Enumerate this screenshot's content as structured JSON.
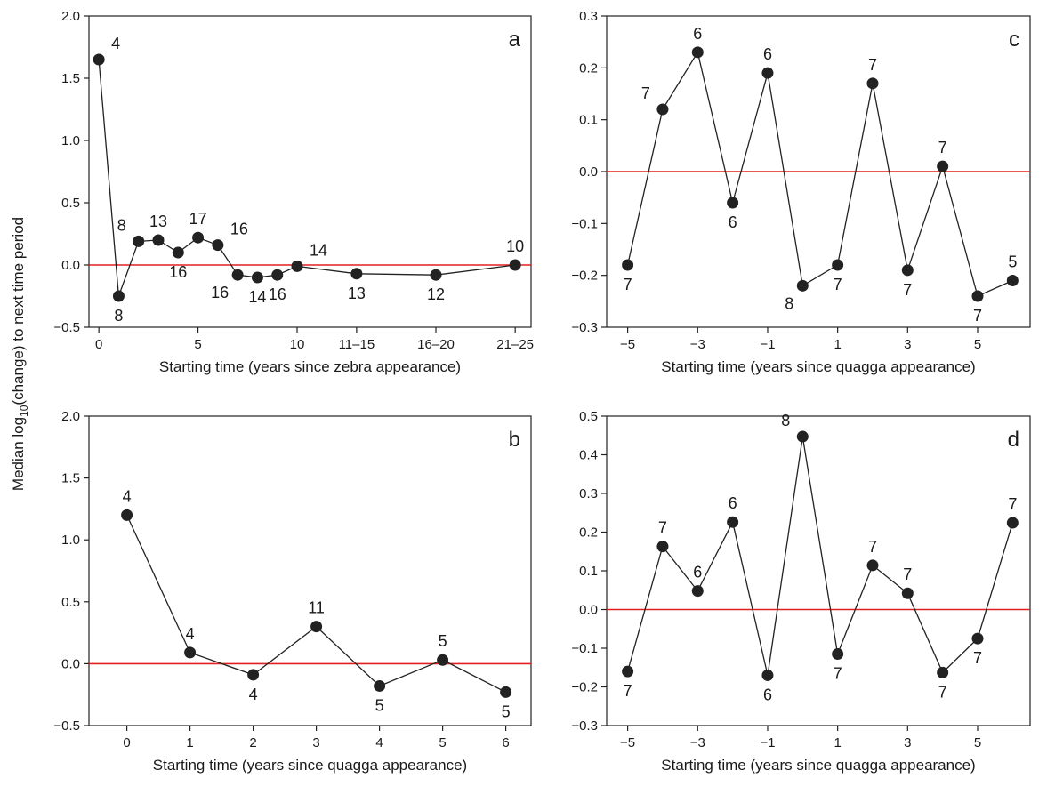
{
  "ylabel_parts": {
    "prefix": "Median log",
    "subscript": "10",
    "suffix": "(change) to next time period"
  },
  "chart_data": [
    {
      "type": "line",
      "panel": "a",
      "xlabel": "Starting time (years since zebra appearance)",
      "ylabel": "",
      "ylim": [
        -0.5,
        2.0
      ],
      "y_ticks": [
        -0.5,
        0.0,
        0.5,
        1.0,
        1.5,
        2.0
      ],
      "y_tick_labels": [
        "−0.5",
        "0.0",
        "0.5",
        "1.0",
        "1.5",
        "2.0"
      ],
      "x_ticks": [
        0,
        5,
        10,
        13,
        17,
        21
      ],
      "x_tick_labels": [
        "0",
        "5",
        "10",
        "11–15",
        "16–20",
        "21–25"
      ],
      "xlim": [
        -0.5,
        21.8
      ],
      "reference_line": 0.0,
      "reference_color": "#e02020",
      "points": [
        {
          "x": 0,
          "y": 1.65,
          "label": "4",
          "label_pos": "upper-right"
        },
        {
          "x": 1,
          "y": -0.25,
          "label": "8",
          "label_pos": "below"
        },
        {
          "x": 2,
          "y": 0.19,
          "label": "8",
          "label_pos": "upper-left"
        },
        {
          "x": 3,
          "y": 0.2,
          "label": "13",
          "label_pos": "above"
        },
        {
          "x": 4,
          "y": 0.1,
          "label": "16",
          "label_pos": "below"
        },
        {
          "x": 5,
          "y": 0.22,
          "label": "17",
          "label_pos": "above"
        },
        {
          "x": 6,
          "y": 0.16,
          "label": "16",
          "label_pos": "upper-right"
        },
        {
          "x": 7,
          "y": -0.08,
          "label": "16",
          "label_pos": "lower-left"
        },
        {
          "x": 8,
          "y": -0.1,
          "label": "14",
          "label_pos": "below"
        },
        {
          "x": 9,
          "y": -0.08,
          "label": "16",
          "label_pos": "below"
        },
        {
          "x": 10,
          "y": -0.01,
          "label": "14",
          "label_pos": "upper-right"
        },
        {
          "x": 13,
          "y": -0.07,
          "label": "13",
          "label_pos": "below"
        },
        {
          "x": 17,
          "y": -0.08,
          "label": "12",
          "label_pos": "below"
        },
        {
          "x": 21,
          "y": 0.0,
          "label": "10",
          "label_pos": "above"
        }
      ]
    },
    {
      "type": "line",
      "panel": "b",
      "xlabel": "Starting time (years since quagga appearance)",
      "ylabel": "",
      "ylim": [
        -0.5,
        2.0
      ],
      "y_ticks": [
        -0.5,
        0.0,
        0.5,
        1.0,
        1.5,
        2.0
      ],
      "y_tick_labels": [
        "−0.5",
        "0.0",
        "0.5",
        "1.0",
        "1.5",
        "2.0"
      ],
      "x_ticks": [
        0,
        1,
        2,
        3,
        4,
        5,
        6
      ],
      "x_tick_labels": [
        "0",
        "1",
        "2",
        "3",
        "4",
        "5",
        "6"
      ],
      "xlim": [
        -0.6,
        6.4
      ],
      "reference_line": 0.0,
      "reference_color": "#e02020",
      "points": [
        {
          "x": 0,
          "y": 1.2,
          "label": "4",
          "label_pos": "above"
        },
        {
          "x": 1,
          "y": 0.09,
          "label": "4",
          "label_pos": "above"
        },
        {
          "x": 2,
          "y": -0.09,
          "label": "4",
          "label_pos": "below"
        },
        {
          "x": 3,
          "y": 0.3,
          "label": "11",
          "label_pos": "above"
        },
        {
          "x": 4,
          "y": -0.18,
          "label": "5",
          "label_pos": "below"
        },
        {
          "x": 5,
          "y": 0.03,
          "label": "5",
          "label_pos": "above"
        },
        {
          "x": 6,
          "y": -0.23,
          "label": "5",
          "label_pos": "below"
        }
      ]
    },
    {
      "type": "line",
      "panel": "c",
      "xlabel": "Starting time (years since quagga appearance)",
      "ylabel": "",
      "ylim": [
        -0.3,
        0.3
      ],
      "y_ticks": [
        -0.3,
        -0.2,
        -0.1,
        0.0,
        0.1,
        0.2,
        0.3
      ],
      "y_tick_labels": [
        "−0.3",
        "−0.2",
        "−0.1",
        "0.0",
        "0.1",
        "0.2",
        "0.3"
      ],
      "x_ticks": [
        -5,
        -3,
        -1,
        1,
        3,
        5
      ],
      "x_tick_labels": [
        "−5",
        "−3",
        "−1",
        "1",
        "3",
        "5"
      ],
      "xlim": [
        -5.6,
        6.5
      ],
      "reference_line": 0.0,
      "reference_color": "#e02020",
      "points": [
        {
          "x": -5,
          "y": -0.18,
          "label": "7",
          "label_pos": "below"
        },
        {
          "x": -4,
          "y": 0.12,
          "label": "7",
          "label_pos": "upper-left"
        },
        {
          "x": -3,
          "y": 0.23,
          "label": "6",
          "label_pos": "above"
        },
        {
          "x": -2,
          "y": -0.06,
          "label": "6",
          "label_pos": "below"
        },
        {
          "x": -1,
          "y": 0.19,
          "label": "6",
          "label_pos": "above"
        },
        {
          "x": 0,
          "y": -0.22,
          "label": "8",
          "label_pos": "lower-left"
        },
        {
          "x": 1,
          "y": -0.18,
          "label": "7",
          "label_pos": "below"
        },
        {
          "x": 2,
          "y": 0.17,
          "label": "7",
          "label_pos": "above"
        },
        {
          "x": 3,
          "y": -0.19,
          "label": "7",
          "label_pos": "below"
        },
        {
          "x": 4,
          "y": 0.01,
          "label": "7",
          "label_pos": "above"
        },
        {
          "x": 5,
          "y": -0.24,
          "label": "7",
          "label_pos": "below"
        },
        {
          "x": 6,
          "y": -0.21,
          "label": "5",
          "label_pos": "above"
        }
      ]
    },
    {
      "type": "line",
      "panel": "d",
      "xlabel": "Starting time (years since quagga appearance)",
      "ylabel": "",
      "ylim": [
        -0.3,
        0.5
      ],
      "y_ticks": [
        -0.3,
        -0.2,
        -0.1,
        0.0,
        0.1,
        0.2,
        0.3,
        0.4,
        0.5
      ],
      "y_tick_labels": [
        "−0.3",
        "−0.2",
        "−0.1",
        "0.0",
        "0.1",
        "0.2",
        "0.3",
        "0.4",
        "0.5"
      ],
      "x_ticks": [
        -5,
        -3,
        -1,
        1,
        3,
        5
      ],
      "x_tick_labels": [
        "−5",
        "−3",
        "−1",
        "1",
        "3",
        "5"
      ],
      "xlim": [
        -5.6,
        6.5
      ],
      "reference_line": 0.0,
      "reference_color": "#e02020",
      "points": [
        {
          "x": -5,
          "y": -0.16,
          "label": "7",
          "label_pos": "below"
        },
        {
          "x": -4,
          "y": 0.163,
          "label": "7",
          "label_pos": "above"
        },
        {
          "x": -3,
          "y": 0.048,
          "label": "6",
          "label_pos": "above"
        },
        {
          "x": -2,
          "y": 0.226,
          "label": "6",
          "label_pos": "above"
        },
        {
          "x": -1,
          "y": -0.17,
          "label": "6",
          "label_pos": "below"
        },
        {
          "x": 0,
          "y": 0.447,
          "label": "8",
          "label_pos": "upper-left"
        },
        {
          "x": 1,
          "y": -0.115,
          "label": "7",
          "label_pos": "below"
        },
        {
          "x": 2,
          "y": 0.114,
          "label": "7",
          "label_pos": "above"
        },
        {
          "x": 3,
          "y": 0.042,
          "label": "7",
          "label_pos": "above"
        },
        {
          "x": 4,
          "y": -0.163,
          "label": "7",
          "label_pos": "below"
        },
        {
          "x": 5,
          "y": -0.075,
          "label": "7",
          "label_pos": "below"
        },
        {
          "x": 6,
          "y": 0.224,
          "label": "7",
          "label_pos": "above"
        }
      ]
    }
  ]
}
